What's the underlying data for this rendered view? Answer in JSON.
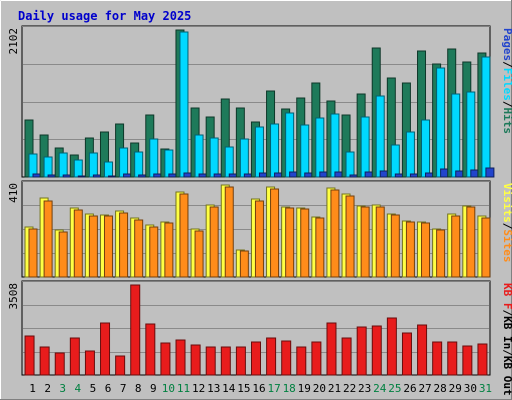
{
  "chart_data": {
    "type": "bar",
    "title": "Daily usage for May 2025",
    "categories": [
      "1",
      "2",
      "3",
      "4",
      "5",
      "6",
      "7",
      "8",
      "9",
      "10",
      "11",
      "12",
      "13",
      "14",
      "15",
      "16",
      "17",
      "18",
      "19",
      "20",
      "21",
      "22",
      "23",
      "24",
      "25",
      "26",
      "27",
      "28",
      "29",
      "30",
      "31"
    ],
    "weekend_days": [
      3,
      4,
      10,
      11,
      17,
      18,
      24,
      25,
      31
    ],
    "panels": [
      {
        "id": "traffic",
        "max_label": "2102",
        "ylim": [
          0,
          2102
        ],
        "legend": [
          "Pages",
          "/",
          "Files",
          "/",
          "Hits"
        ],
        "series": [
          {
            "name": "Hits",
            "color": "#1e7a5a",
            "values": [
              820,
              600,
              420,
              320,
              560,
              650,
              760,
              480,
              880,
              400,
              2100,
              990,
              860,
              1110,
              980,
              790,
              1230,
              970,
              1130,
              1340,
              1080,
              890,
              1180,
              1840,
              1420,
              1340,
              1800,
              1610,
              1830,
              1640,
              1770
            ]
          },
          {
            "name": "Files",
            "color": "#00d8ff",
            "values": [
              330,
              280,
              350,
              240,
              340,
              220,
              420,
              360,
              540,
              380,
              2080,
              600,
              560,
              430,
              540,
              720,
              760,
              920,
              740,
              840,
              900,
              360,
              860,
              1160,
              460,
              640,
              820,
              1560,
              1180,
              1220,
              1720
            ]
          },
          {
            "name": "Pages",
            "color": "#2244cc",
            "values": [
              40,
              30,
              30,
              20,
              30,
              20,
              40,
              30,
              50,
              40,
              60,
              50,
              50,
              40,
              50,
              60,
              60,
              70,
              60,
              70,
              70,
              30,
              70,
              90,
              40,
              50,
              60,
              120,
              90,
              100,
              130
            ]
          }
        ]
      },
      {
        "id": "visits",
        "max_label": "410",
        "ylim": [
          0,
          410
        ],
        "legend": [
          "Visits",
          "/",
          "Sites"
        ],
        "series": [
          {
            "name": "Visits",
            "color": "#ffff44",
            "values": [
              222,
              350,
              208,
              306,
              280,
              277,
              294,
              262,
              232,
              247,
              380,
              212,
              320,
              410,
              120,
              347,
              401,
              313,
              309,
              268,
              397,
              372,
              318,
              322,
              282,
              250,
              246,
              214,
              280,
              318,
              270
            ]
          },
          {
            "name": "Sites",
            "color": "#ff8c1a",
            "values": [
              216,
              340,
              200,
              298,
              272,
              271,
              287,
              256,
              225,
              240,
              370,
              205,
              312,
              402,
              114,
              339,
              391,
              306,
              301,
              261,
              388,
              363,
              310,
              314,
              275,
              243,
              239,
              208,
              273,
              310,
              262
            ]
          }
        ]
      },
      {
        "id": "volume",
        "max_label": "3508",
        "ylim": [
          0,
          3508
        ],
        "legend": [
          "KB F",
          "/",
          "KB In",
          "/",
          "KB Out"
        ],
        "series": [
          {
            "name": "KB F",
            "color": "#e81c1c",
            "values": [
              1520,
              1080,
              840,
              1440,
              920,
              2040,
              760,
              3500,
              2000,
              1250,
              1380,
              1180,
              1110,
              1090,
              1090,
              1270,
              1460,
              1340,
              1110,
              1270,
              2040,
              1460,
              1860,
              1900,
              2240,
              1650,
              1950,
              1280,
              1290,
              1120,
              1190
            ]
          }
        ]
      }
    ]
  }
}
